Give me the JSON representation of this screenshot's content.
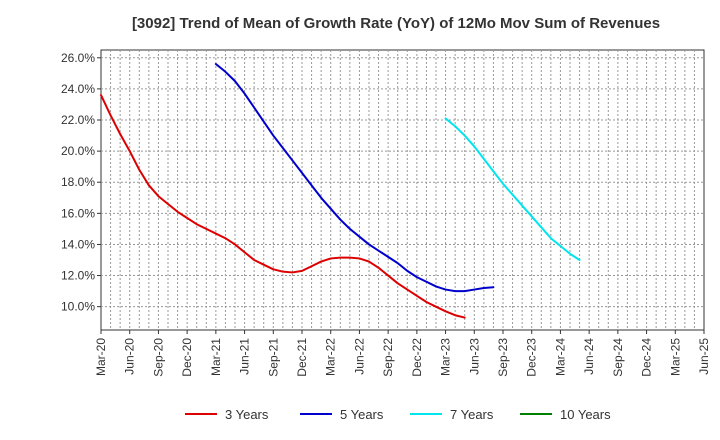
{
  "chart_data": {
    "type": "line",
    "title": "[3092]  Trend of Mean of Growth Rate (YoY) of 12Mo Mov Sum of Revenues",
    "xlabel": "",
    "ylabel": "",
    "ylim": [
      8.5,
      26.5
    ],
    "y_ticks": [
      10,
      12,
      14,
      16,
      18,
      20,
      22,
      24,
      26
    ],
    "y_tick_labels": [
      "10.0%",
      "12.0%",
      "14.0%",
      "16.0%",
      "18.0%",
      "20.0%",
      "22.0%",
      "24.0%",
      "26.0%"
    ],
    "x_tick_labels": [
      "Mar-20",
      "Jun-20",
      "Sep-20",
      "Dec-20",
      "Mar-21",
      "Jun-21",
      "Sep-21",
      "Dec-21",
      "Mar-22",
      "Jun-22",
      "Sep-22",
      "Dec-22",
      "Mar-23",
      "Jun-23",
      "Sep-23",
      "Dec-23",
      "Mar-24",
      "Jun-24",
      "Sep-24",
      "Dec-24",
      "Mar-25",
      "Jun-25"
    ],
    "x_start_label": "Mar-20",
    "x_months_span": 63,
    "grid": true,
    "legend_position": "bottom",
    "series": [
      {
        "name": "3 Years",
        "color": "#dd0000",
        "start_month": 0,
        "values": [
          23.6,
          22.3,
          21.1,
          20.0,
          18.8,
          17.8,
          17.1,
          16.6,
          16.1,
          15.7,
          15.3,
          15.0,
          14.7,
          14.4,
          14.0,
          13.5,
          13.0,
          12.7,
          12.4,
          12.25,
          12.2,
          12.3,
          12.6,
          12.9,
          13.1,
          13.15,
          13.15,
          13.1,
          12.9,
          12.5,
          12.0,
          11.5,
          11.1,
          10.7,
          10.3,
          10.0,
          9.7,
          9.45,
          9.3
        ]
      },
      {
        "name": "5 Years",
        "color": "#0000cc",
        "start_month": 12,
        "values": [
          25.6,
          25.1,
          24.5,
          23.7,
          22.8,
          21.9,
          21.0,
          20.2,
          19.4,
          18.6,
          17.8,
          17.0,
          16.3,
          15.6,
          15.0,
          14.5,
          14.0,
          13.6,
          13.2,
          12.8,
          12.3,
          11.9,
          11.6,
          11.3,
          11.1,
          11.0,
          11.0,
          11.1,
          11.2,
          11.25
        ]
      },
      {
        "name": "7 Years",
        "color": "#00e5ee",
        "start_month": 36,
        "values": [
          22.1,
          21.6,
          21.0,
          20.3,
          19.5,
          18.7,
          17.9,
          17.2,
          16.5,
          15.8,
          15.1,
          14.4,
          13.9,
          13.4,
          13.0
        ]
      },
      {
        "name": "10 Years",
        "color": "#008000",
        "start_month": 0,
        "values": []
      }
    ]
  }
}
